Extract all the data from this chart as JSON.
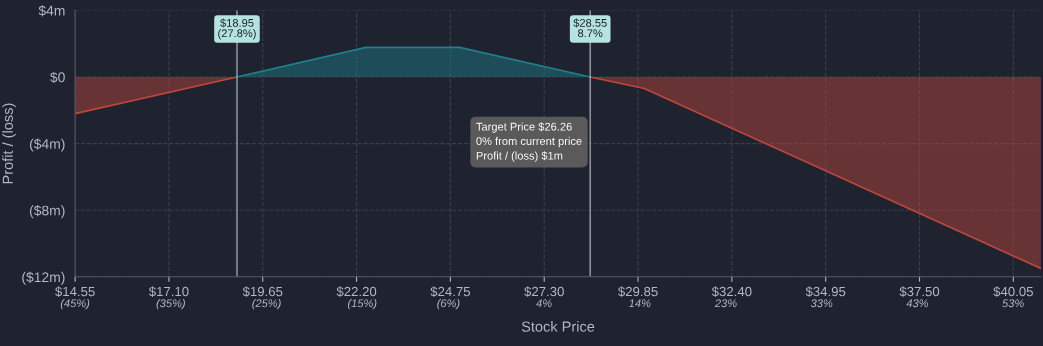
{
  "chart_data": {
    "type": "area",
    "xlabel": "Stock Price",
    "ylabel": "Profit / (loss)",
    "x": [
      14.55,
      18.95,
      22.46,
      25.0,
      28.55,
      30.02,
      40.8
    ],
    "series": [
      {
        "values": [
          -2.2,
          0,
          null,
          null,
          0,
          -0.69,
          -11.5
        ],
        "color": "#c0463c"
      },
      {
        "values": [
          null,
          0,
          1.78,
          1.78,
          0,
          null,
          null
        ],
        "color": "#1f7f8c"
      }
    ],
    "xlim": [
      14.55,
      40.8
    ],
    "ylim": [
      -12,
      4
    ],
    "xticks": [
      {
        "value": 14.55,
        "label": "$14.55"
      },
      {
        "value": 17.1,
        "label": "$17.10"
      },
      {
        "value": 19.65,
        "label": "$19.65"
      },
      {
        "value": 22.2,
        "label": "$22.20"
      },
      {
        "value": 24.75,
        "label": "$24.75"
      },
      {
        "value": 27.3,
        "label": "$27.30"
      },
      {
        "value": 29.85,
        "label": "$29.85"
      },
      {
        "value": 32.4,
        "label": "$32.40"
      },
      {
        "value": 34.95,
        "label": "$34.95"
      },
      {
        "value": 37.5,
        "label": "$37.50"
      },
      {
        "value": 40.05,
        "label": "$40.05"
      }
    ],
    "x2lim": [
      -45,
      55.9
    ],
    "x2ticks": [
      {
        "value": -45,
        "label": "(45%)"
      },
      {
        "value": -35,
        "label": "(35%)"
      },
      {
        "value": -25,
        "label": "(25%)"
      },
      {
        "value": -15,
        "label": "(15%)"
      },
      {
        "value": -6,
        "label": "(6%)"
      },
      {
        "value": 4,
        "label": "4%"
      },
      {
        "value": 14,
        "label": "14%"
      },
      {
        "value": 23,
        "label": "23%"
      },
      {
        "value": 33,
        "label": "33%"
      },
      {
        "value": 43,
        "label": "43%"
      },
      {
        "value": 53,
        "label": "53%"
      }
    ],
    "yticks": [
      {
        "value": 4,
        "label": "$4m"
      },
      {
        "value": 0,
        "label": "$0"
      },
      {
        "value": -4,
        "label": "($4m)"
      },
      {
        "value": -8,
        "label": "($8m)"
      },
      {
        "value": -12,
        "label": "($12m)"
      }
    ],
    "ref_lines": [
      {
        "axis": "x",
        "value": 18.95,
        "label": "$18.95\n(27.8%)",
        "color": "#9aa0aa"
      },
      {
        "axis": "x",
        "value": 28.55,
        "label": "$28.55\n8.7%",
        "color": "#9aa0aa"
      }
    ],
    "annotations": [
      "Target Price $26.26\n0% from current price\nProfit / (loss) $1m"
    ],
    "grid": true,
    "line_style": "solid"
  }
}
